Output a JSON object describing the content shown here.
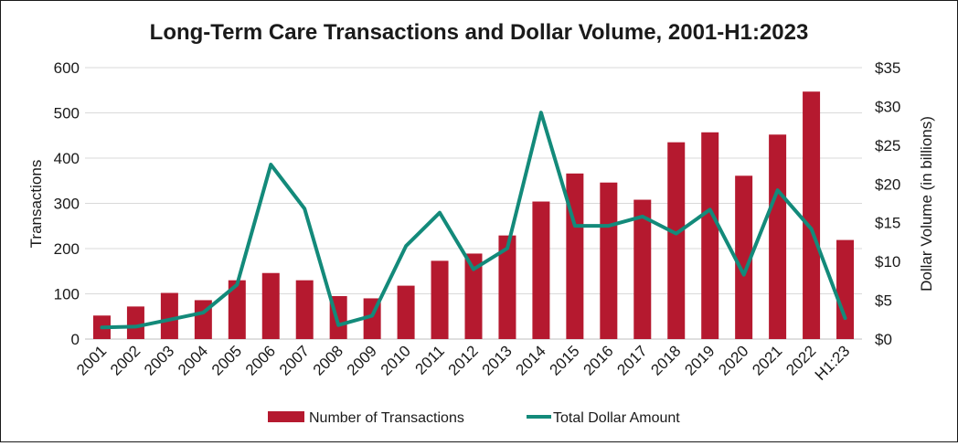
{
  "chart_data": {
    "type": "bar+line",
    "title": "Long-Term Care Transactions and Dollar Volume, 2001-H1:2023",
    "ylabel_left": "Transactions",
    "ylabel_right": "Dollar Volume (in billions)",
    "ylim_left": [
      0,
      600
    ],
    "ylim_right": [
      0,
      35
    ],
    "yticks_left": [
      "0",
      "100",
      "200",
      "300",
      "400",
      "500",
      "600"
    ],
    "yticks_right": [
      "$0",
      "$5",
      "$10",
      "$15",
      "$20",
      "$25",
      "$30",
      "$35"
    ],
    "grid": true,
    "legend_position": "bottom",
    "categories": [
      "2001",
      "2002",
      "2003",
      "2004",
      "2005",
      "2006",
      "2007",
      "2008",
      "2009",
      "2010",
      "2011",
      "2012",
      "2013",
      "2014",
      "2015",
      "2016",
      "2017",
      "2018",
      "2019",
      "2020",
      "2021",
      "2022",
      "H1:23"
    ],
    "series": [
      {
        "name": "Number of Transactions",
        "type": "bar",
        "axis": "left",
        "color": "#b5192f",
        "values": [
          52,
          72,
          102,
          86,
          130,
          146,
          130,
          95,
          90,
          118,
          173,
          189,
          229,
          304,
          366,
          346,
          308,
          435,
          457,
          361,
          452,
          547,
          219
        ]
      },
      {
        "name": "Total Dollar Amount",
        "type": "line",
        "axis": "right",
        "color": "#138a7a",
        "values": [
          1.5,
          1.6,
          2.5,
          3.4,
          7.0,
          22.5,
          16.8,
          1.8,
          3.0,
          12.0,
          16.3,
          9.0,
          11.7,
          29.2,
          14.6,
          14.6,
          15.8,
          13.6,
          16.7,
          8.3,
          19.2,
          14.2,
          2.7
        ]
      }
    ]
  }
}
